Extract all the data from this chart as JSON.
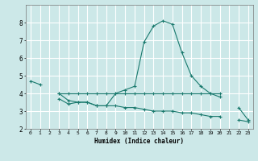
{
  "xlabel": "Humidex (Indice chaleur)",
  "x_values": [
    0,
    1,
    2,
    3,
    4,
    5,
    6,
    7,
    8,
    9,
    10,
    11,
    12,
    13,
    14,
    15,
    16,
    17,
    18,
    19,
    20,
    21,
    22,
    23
  ],
  "main_y": [
    4.7,
    4.5,
    null,
    4.0,
    3.6,
    3.5,
    3.5,
    3.3,
    3.3,
    4.0,
    4.2,
    4.4,
    6.9,
    7.8,
    8.1,
    7.9,
    6.3,
    5.0,
    4.4,
    4.0,
    3.8,
    null,
    3.2,
    2.5
  ],
  "flat_y": [
    null,
    null,
    null,
    4.0,
    4.0,
    4.0,
    4.0,
    4.0,
    4.0,
    4.0,
    4.0,
    4.0,
    4.0,
    4.0,
    4.0,
    4.0,
    4.0,
    4.0,
    4.0,
    4.0,
    4.0,
    null,
    null,
    null
  ],
  "low_y": [
    null,
    null,
    null,
    3.7,
    3.4,
    3.5,
    3.5,
    3.3,
    3.3,
    3.3,
    3.2,
    3.2,
    3.1,
    3.0,
    3.0,
    3.0,
    2.9,
    2.9,
    2.8,
    2.7,
    2.7,
    null,
    2.5,
    2.4
  ],
  "bg_color": "#cce8e8",
  "grid_color": "#ffffff",
  "line_color": "#1a7a6e",
  "ylim": [
    2,
    9
  ],
  "xlim": [
    -0.5,
    23.5
  ],
  "yticks": [
    2,
    3,
    4,
    5,
    6,
    7,
    8
  ],
  "xticks": [
    0,
    1,
    2,
    3,
    4,
    5,
    6,
    7,
    8,
    9,
    10,
    11,
    12,
    13,
    14,
    15,
    16,
    17,
    18,
    19,
    20,
    21,
    22,
    23
  ]
}
